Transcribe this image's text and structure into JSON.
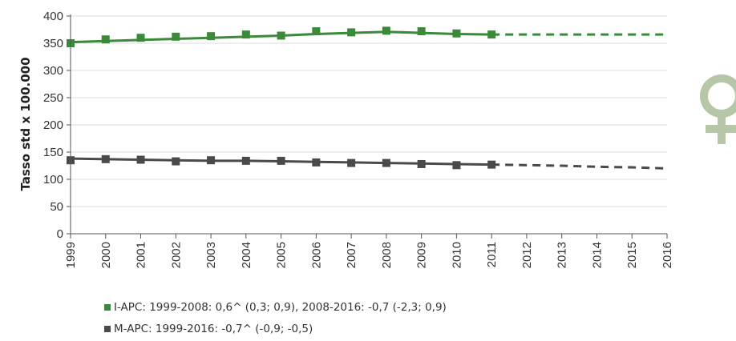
{
  "chart_data": {
    "type": "line",
    "ylabel": "Tasso std x 100.000",
    "ylim": [
      0,
      400
    ],
    "yticks": [
      "0",
      "50",
      "100",
      "150",
      "200",
      "250",
      "300",
      "350",
      "400"
    ],
    "categories": [
      "1999",
      "2000",
      "2001",
      "2002",
      "2003",
      "2004",
      "2005",
      "2006",
      "2007",
      "2008",
      "2009",
      "2010",
      "2011",
      "2012",
      "2013",
      "2014",
      "2015",
      "2016"
    ],
    "grid": true,
    "legend_position": "bottom-left",
    "series": [
      {
        "name": "I-APC: 1999-2008: 0,6^ (0,3; 0,9), 2008-2016: -0,7 (-2,3; 0,9)",
        "color": "#3a8a3a",
        "observed": [
          350,
          357,
          360,
          362,
          363,
          366,
          364,
          372,
          370,
          373,
          372,
          368,
          366
        ],
        "fitted": [
          352,
          354,
          356,
          358,
          360,
          362,
          364,
          367,
          369,
          371,
          369,
          367,
          366,
          366,
          366,
          366,
          366,
          366
        ],
        "projected_from": "2011"
      },
      {
        "name": "M-APC: 1999-2016: -0,7^ (-0,9; -0,5)",
        "color": "#4a4a4a",
        "observed": [
          135,
          137,
          136,
          133,
          135,
          134,
          134,
          131,
          130,
          130,
          128,
          126,
          127
        ],
        "fitted": [
          138,
          137,
          136,
          135,
          134,
          134,
          133,
          132,
          131,
          130,
          129,
          128,
          127,
          126,
          125,
          123,
          122,
          120
        ],
        "projected_from": "2011"
      }
    ]
  },
  "icons": {
    "female": "venus-symbol-icon",
    "female_color": "#b5c7a6"
  }
}
